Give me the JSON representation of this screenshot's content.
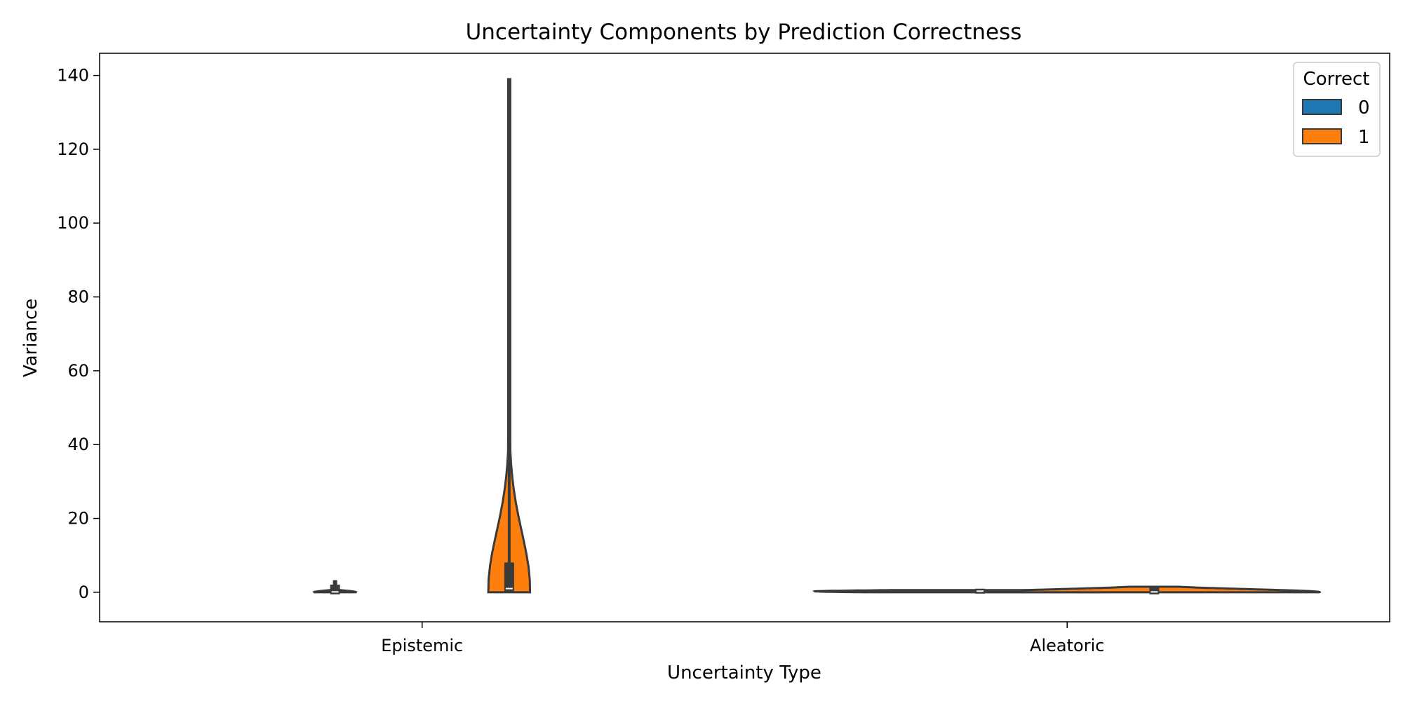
{
  "chart_data": {
    "type": "violin",
    "title": "Uncertainty Components by Prediction Correctness",
    "xlabel": "Uncertainty Type",
    "ylabel": "Variance",
    "categories": [
      "Epistemic",
      "Aleatoric"
    ],
    "ylim": [
      -8,
      146
    ],
    "yticks": [
      0,
      20,
      40,
      60,
      80,
      100,
      120,
      140
    ],
    "grid": false,
    "legend": {
      "title": "Correct",
      "placement": "top-right"
    },
    "series": [
      {
        "name": "0",
        "color": "#1f77b4",
        "distributions": [
          {
            "category": "Epistemic",
            "min": 0.0,
            "q1": 0.0,
            "median": 0.1,
            "q3": 1.5,
            "max": 3.0
          },
          {
            "category": "Aleatoric",
            "min": 0.0,
            "q1": 0.2,
            "median": 0.3,
            "q3": 0.4,
            "max": 0.6
          }
        ]
      },
      {
        "name": "1",
        "color": "#ff7f0e",
        "distributions": [
          {
            "category": "Epistemic",
            "min": 0.0,
            "q1": 0.5,
            "median": 1.0,
            "q3": 7.5,
            "max": 139.0
          },
          {
            "category": "Aleatoric",
            "min": 0.0,
            "q1": 0.0,
            "median": 0.1,
            "q3": 1.0,
            "max": 1.5
          }
        ]
      }
    ]
  }
}
